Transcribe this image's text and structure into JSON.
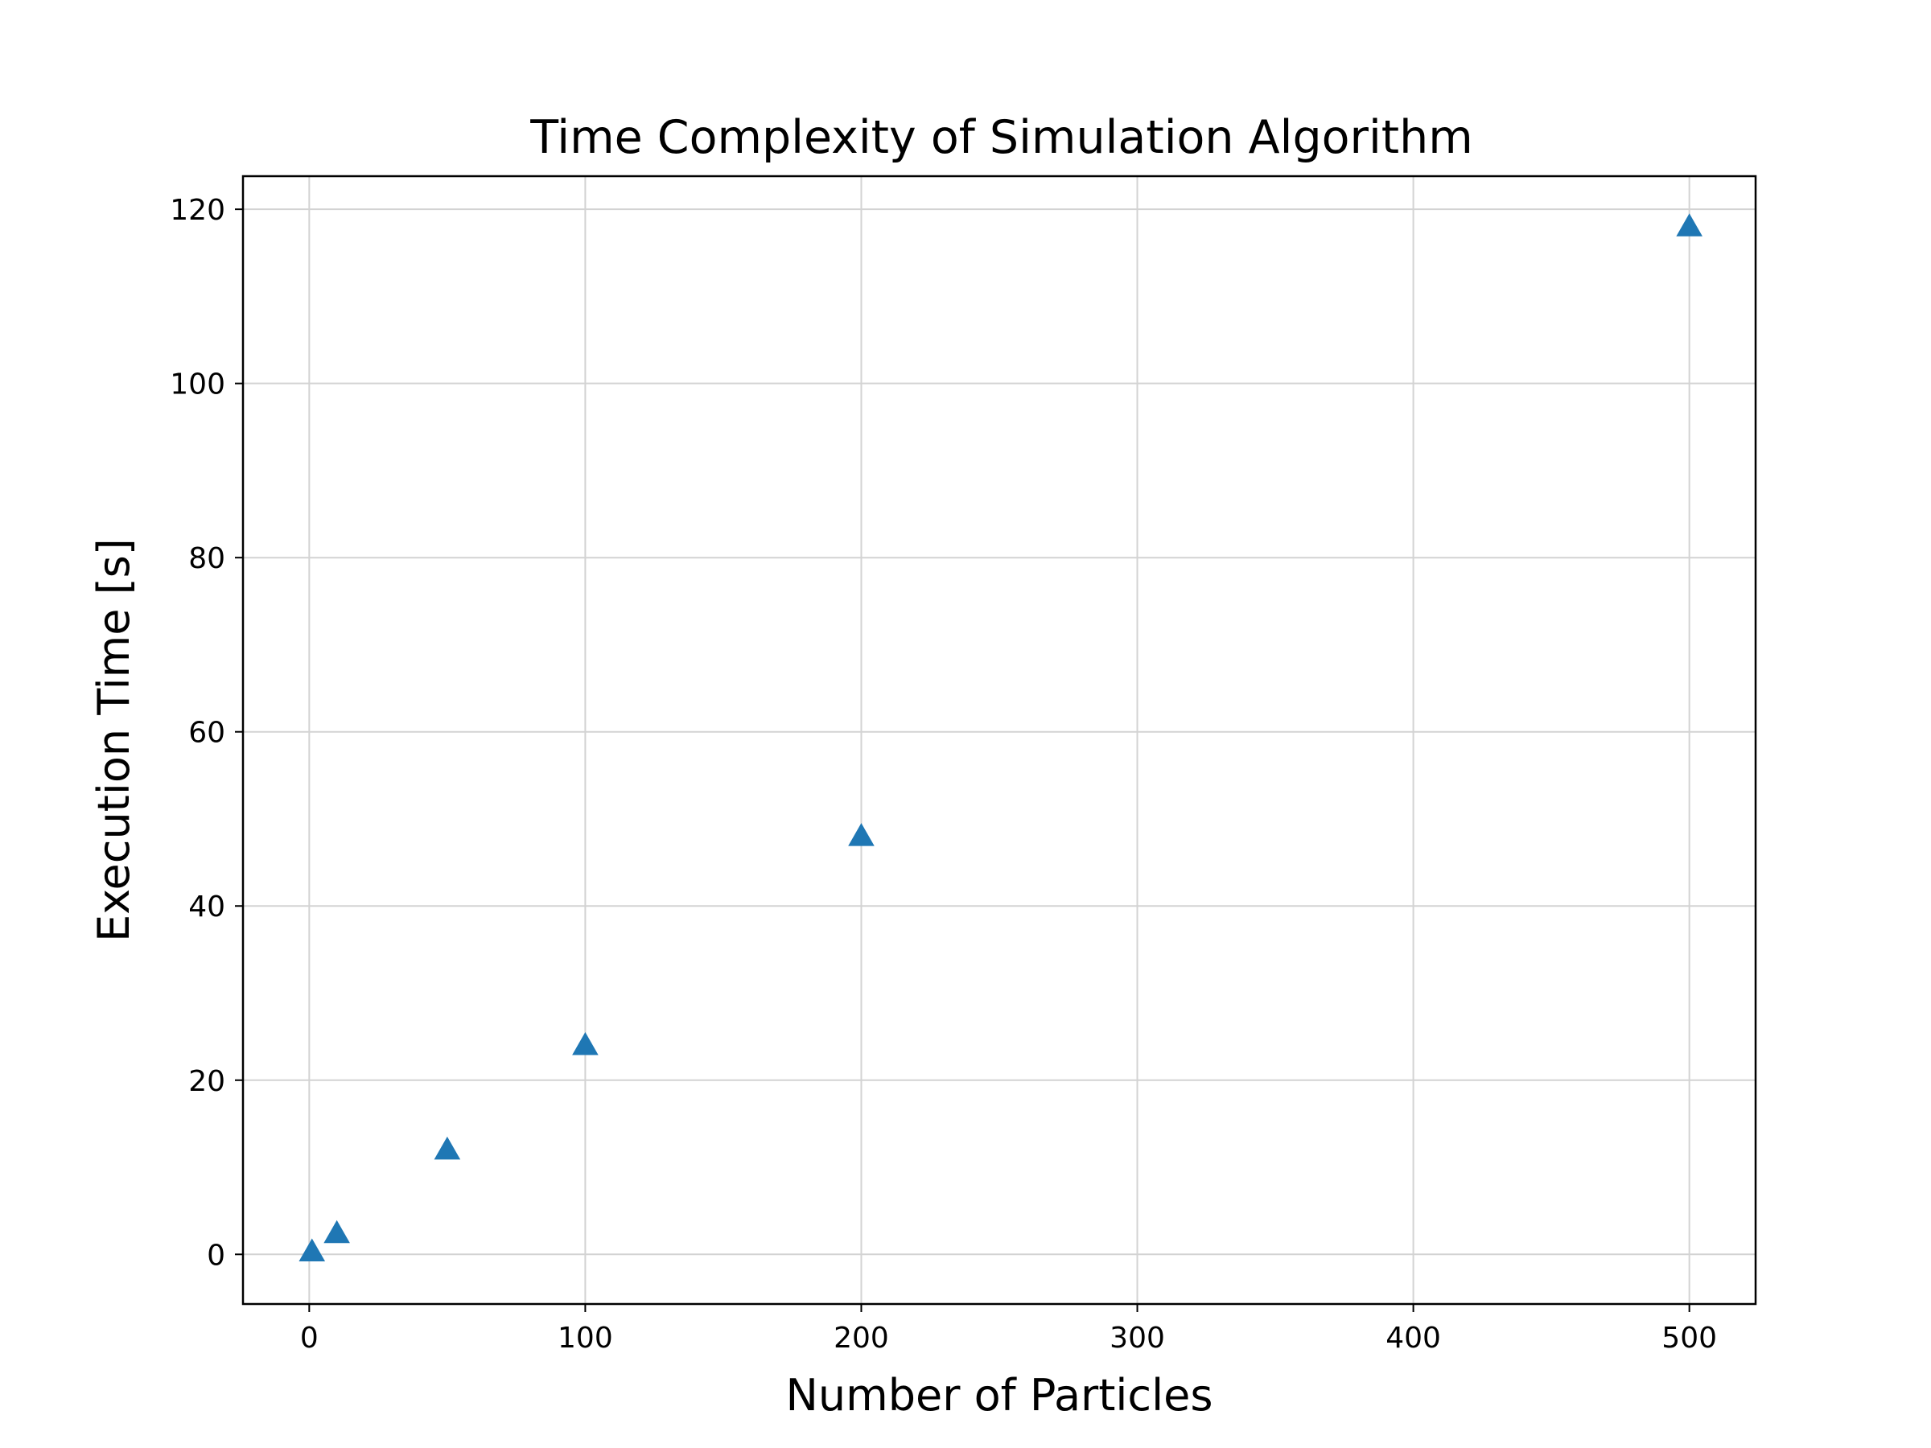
{
  "chart_data": {
    "type": "scatter",
    "title": "Time Complexity of Simulation Algorithm",
    "xlabel": "Number of Particles",
    "ylabel": "Execution Time [s]",
    "xlim": [
      -24,
      524
    ],
    "ylim": [
      -5.7,
      123.8
    ],
    "xticks": [
      0,
      100,
      200,
      300,
      400,
      500
    ],
    "yticks": [
      0,
      20,
      40,
      60,
      80,
      100,
      120
    ],
    "grid": true,
    "marker": "triangle-up",
    "color": "#1f77b4",
    "series": [
      {
        "x": [
          1,
          10,
          50,
          100,
          200,
          500
        ],
        "y": [
          0.3,
          2.4,
          12,
          24,
          48,
          118
        ]
      }
    ]
  }
}
